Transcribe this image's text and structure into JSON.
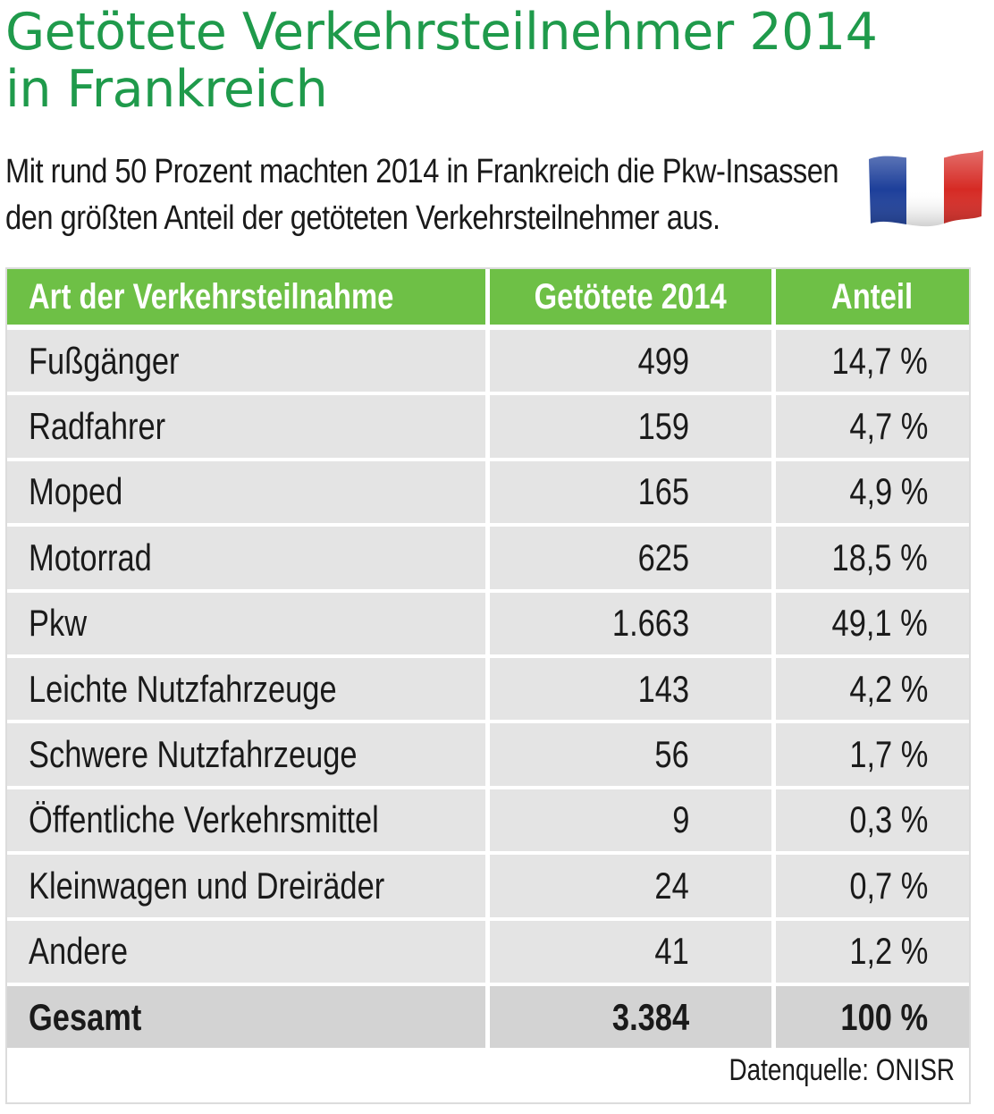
{
  "title": {
    "line1": "Getötete Verkehrsteilnehmer 2014",
    "line2": "in Frankreich"
  },
  "subtitle": {
    "line1": "Mit rund 50 Prozent machten 2014 in Frankreich die Pkw-Insassen",
    "line2": "den größten Anteil der getöteten Verkehrsteilnehmer aus."
  },
  "flag": {
    "icon": "france-flag-icon",
    "colors": [
      "#1d3f9a",
      "#ffffff",
      "#d62a24"
    ]
  },
  "colors": {
    "title": "#1f9a4b",
    "header_bg": "#6ec046",
    "row_bg": "#e4e4e4",
    "total_bg": "#d3d3d3"
  },
  "chart_data": {
    "type": "table",
    "columns": [
      "Art der Verkehrsteilnahme",
      "Getötete 2014",
      "Anteil"
    ],
    "rows": [
      [
        "Fußgänger",
        "499",
        "14,7 %"
      ],
      [
        "Radfahrer",
        "159",
        "4,7 %"
      ],
      [
        "Moped",
        "165",
        "4,9 %"
      ],
      [
        "Motorrad",
        "625",
        "18,5 %"
      ],
      [
        "Pkw",
        "1.663",
        "49,1 %"
      ],
      [
        "Leichte Nutzfahrzeuge",
        "143",
        "4,2 %"
      ],
      [
        "Schwere Nutzfahrzeuge",
        "56",
        "1,7 %"
      ],
      [
        "Öffentliche Verkehrsmittel",
        "9",
        "0,3 %"
      ],
      [
        "Kleinwagen und Dreiräder",
        "24",
        "0,7 %"
      ],
      [
        "Andere",
        "41",
        "1,2 %"
      ]
    ],
    "total": [
      "Gesamt",
      "3.384",
      "100 %"
    ]
  },
  "source": "Datenquelle: ONISR"
}
